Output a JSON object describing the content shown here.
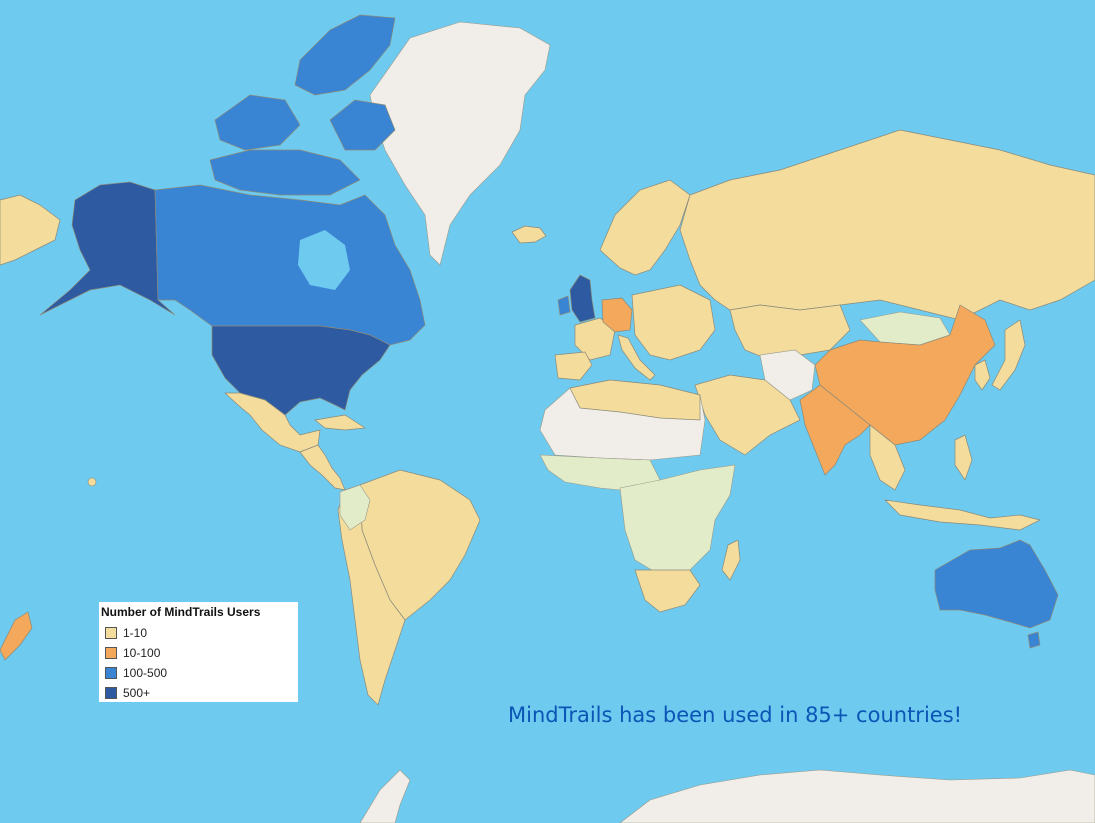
{
  "legend": {
    "title": "Number of MindTrails Users",
    "items": [
      {
        "label": "1-10",
        "color": "#f4dc9c"
      },
      {
        "label": "10-100",
        "color": "#f3a85b"
      },
      {
        "label": "100-500",
        "color": "#3a84d4"
      },
      {
        "label": "500+",
        "color": "#2d5aa0"
      }
    ]
  },
  "caption": "MindTrails has been used in 85+ countries!",
  "colors": {
    "ocean": "#6ecbef",
    "no_data": "#f1ede8",
    "unknown_light": "#e3ecc9",
    "tier_1_10": "#f4dc9c",
    "tier_10_100": "#f3a85b",
    "tier_100_500": "#3a84d4",
    "tier_500_plus": "#2d5aa0",
    "caption_text": "#0a55b5"
  },
  "countries": [
    {
      "name": "United States",
      "tier": "500+"
    },
    {
      "name": "Alaska",
      "tier": "500+"
    },
    {
      "name": "Canada",
      "tier": "100-500"
    },
    {
      "name": "United Kingdom",
      "tier": "100-500"
    },
    {
      "name": "Australia",
      "tier": "100-500"
    },
    {
      "name": "Germany",
      "tier": "10-100"
    },
    {
      "name": "China",
      "tier": "10-100"
    },
    {
      "name": "India",
      "tier": "10-100"
    },
    {
      "name": "New Zealand",
      "tier": "10-100"
    },
    {
      "name": "Russia",
      "tier": "1-10"
    },
    {
      "name": "Mexico",
      "tier": "1-10"
    },
    {
      "name": "Brazil",
      "tier": "1-10"
    },
    {
      "name": "South Africa",
      "tier": "1-10"
    },
    {
      "name": "Japan",
      "tier": "1-10"
    }
  ]
}
